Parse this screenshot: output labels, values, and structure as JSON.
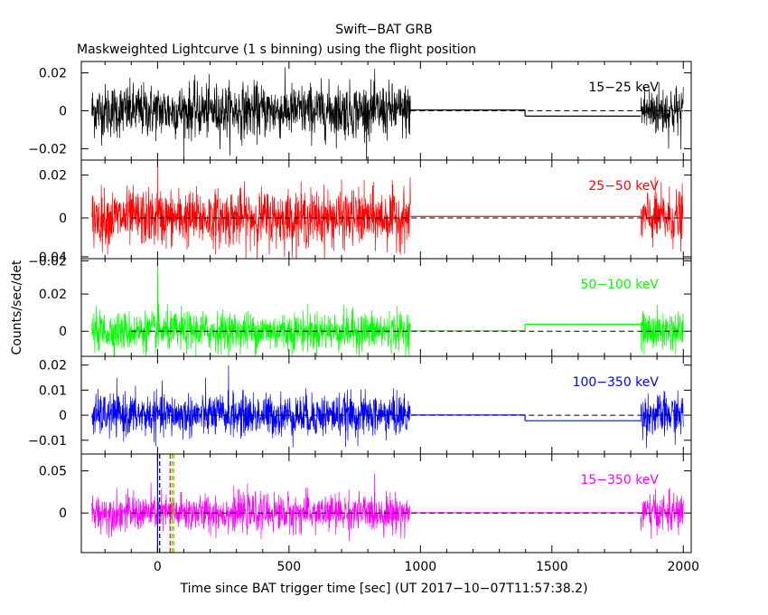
{
  "colors": {
    "black": "#000000",
    "red": "#ff0000",
    "green": "#00ff00",
    "blue": "#0000ff",
    "magenta": "#ff00ff"
  },
  "chart_data": {
    "type": "line",
    "title": "Swift−BAT GRB",
    "subtitle": "Maskweighted Lightcurve (1 s binning) using the flight position",
    "xlabel": "Time since BAT trigger time [sec] (UT 2017−10−07T11:57:38.2)",
    "ylabel": "Counts/sec/det",
    "xlim": [
      -290,
      2030
    ],
    "x_ticks": [
      0,
      500,
      1000,
      1500,
      2000
    ],
    "x_tick_labels": [
      "0",
      "500",
      "1000",
      "1500",
      "2000"
    ],
    "data_segments": [
      [
        -250,
        962
      ],
      [
        1838,
        2000
      ]
    ],
    "gap": [
      962,
      1838
    ],
    "bin_seconds": 1,
    "marker_lines": [
      {
        "x": 0,
        "color": "#0000ff",
        "style": "solid"
      },
      {
        "x": 8,
        "color": "#000000",
        "style": "dashed"
      },
      {
        "x": 48,
        "color": "#ff0000",
        "style": "dashed"
      },
      {
        "x": 56,
        "color": "#00ff00",
        "style": "dashed"
      },
      {
        "x": 62,
        "color": "#ff9900",
        "style": "dashed"
      }
    ],
    "panels": [
      {
        "band": "15−25 keV",
        "color": "#000000",
        "ylim": [
          -0.026,
          0.026
        ],
        "y_ticks": [
          -0.02,
          0,
          0.02
        ],
        "y_tick_labels": [
          "−0.02",
          "0",
          "0.02"
        ],
        "noise_sigma": 0.007,
        "spikes": [],
        "gap_levels": [
          {
            "x0": 962,
            "x1": 1398,
            "y": 0.0004
          },
          {
            "x0": 1398,
            "x1": 1838,
            "y": -0.0028
          }
        ],
        "dashed_range": [
          962,
          2000
        ]
      },
      {
        "band": "25−50 keV",
        "color": "#ff0000",
        "ylim": [
          -0.019,
          0.027
        ],
        "y_ticks": [
          -0.02,
          0,
          0.02
        ],
        "y_tick_labels": [
          "−0.02",
          "0",
          "0.02"
        ],
        "noise_sigma": 0.0065,
        "spikes": [
          {
            "x": 0,
            "y": 0.027
          }
        ],
        "gap_levels": [
          {
            "x0": 962,
            "x1": 1838,
            "y": 0.0007
          }
        ],
        "dashed_range": [
          -100,
          2000
        ]
      },
      {
        "band": "50−100 keV",
        "color": "#00ff00",
        "ylim": [
          -0.0135,
          0.039
        ],
        "y_ticks": [
          0,
          0.02,
          0.04
        ],
        "y_tick_labels": [
          "0",
          "0.02",
          "0.04"
        ],
        "noise_sigma": 0.0052,
        "spikes": [
          {
            "x": 0,
            "y": 0.038
          },
          {
            "x": 1,
            "y": 0.022
          }
        ],
        "gap_levels": [
          {
            "x0": 962,
            "x1": 1398,
            "y": 0.0002
          },
          {
            "x0": 1398,
            "x1": 1838,
            "y": 0.0037
          }
        ],
        "dashed_range": [
          -100,
          2000
        ]
      },
      {
        "band": "100−350 keV",
        "color": "#0000ff",
        "ylim": [
          -0.0155,
          0.0235
        ],
        "y_ticks": [
          -0.01,
          0,
          0.01,
          0.02
        ],
        "y_tick_labels": [
          "−0.01",
          "0",
          "0.01",
          "0.02"
        ],
        "noise_sigma": 0.0042,
        "spikes": [
          {
            "x": 270,
            "y": 0.02
          }
        ],
        "gap_levels": [
          {
            "x0": 962,
            "x1": 1398,
            "y": 0.0001
          },
          {
            "x0": 1398,
            "x1": 1838,
            "y": -0.0022
          }
        ],
        "dashed_range": [
          -100,
          2000
        ]
      },
      {
        "band": "15−350 keV",
        "color": "#ff00ff",
        "ylim": [
          -0.047,
          0.07
        ],
        "y_ticks": [
          0,
          0.05
        ],
        "y_tick_labels": [
          "0",
          "0.05"
        ],
        "noise_sigma": 0.011,
        "spikes": [],
        "gap_levels": [
          {
            "x0": 962,
            "x1": 1838,
            "y": 0.0003
          }
        ],
        "dashed_range": [
          -100,
          2000
        ]
      }
    ]
  }
}
